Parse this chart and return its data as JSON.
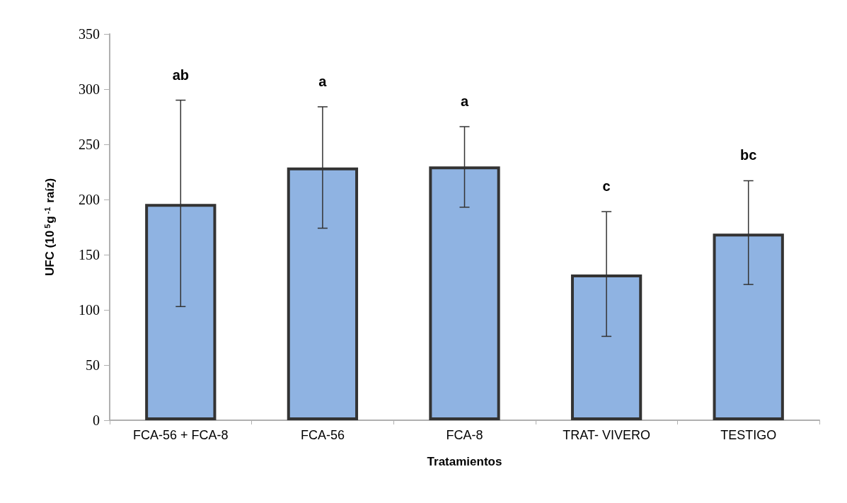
{
  "chart_data": {
    "type": "bar",
    "xlabel": "Tratamientos",
    "ylabel": "UFC (10$^{5}$g$^{-1}$ raíz)",
    "categories": [
      "FCA-56 + FCA-8",
      "FCA-56",
      "FCA-8",
      "TRAT- VIVERO",
      "TESTIGO"
    ],
    "values": [
      196,
      229,
      230,
      132,
      169
    ],
    "errors": [
      [
        103,
        290
      ],
      [
        174,
        284
      ],
      [
        193,
        266
      ],
      [
        76,
        189
      ],
      [
        123,
        217
      ]
    ],
    "color": "#8fb3e2",
    "ylim": [
      0,
      350
    ],
    "yticks": [
      0,
      50,
      100,
      150,
      200,
      250,
      300,
      350
    ],
    "grid": false,
    "annotations": [
      "ab",
      "a",
      "a",
      "c",
      "bc"
    ]
  }
}
